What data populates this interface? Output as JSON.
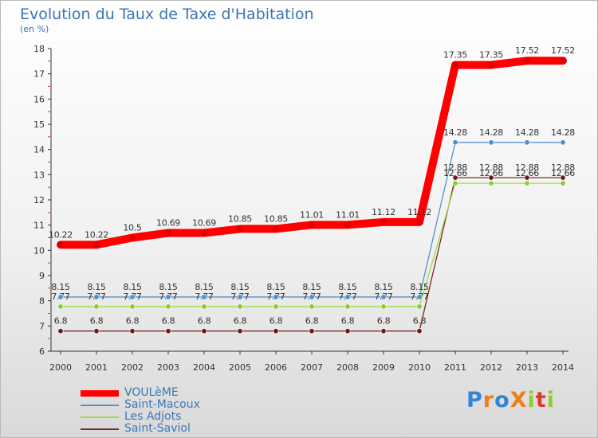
{
  "chart_data": {
    "type": "line",
    "title": "Evolution du Taux de Taxe d'Habitation",
    "subtitle": "(en %)",
    "categories": [
      "2000",
      "2001",
      "2002",
      "2003",
      "2004",
      "2005",
      "2006",
      "2007",
      "2008",
      "2009",
      "2010",
      "2011",
      "2012",
      "2013",
      "2014"
    ],
    "ylim": [
      6,
      18
    ],
    "yticks": [
      "6",
      "7",
      "8",
      "9",
      "10",
      "11",
      "12",
      "13",
      "14",
      "15",
      "16",
      "17",
      "18"
    ],
    "grid": false,
    "legend_position": "bottom-left",
    "series": [
      {
        "name": "VOULèME",
        "color": "#ff0000",
        "values": [
          10.22,
          10.22,
          10.5,
          10.69,
          10.69,
          10.85,
          10.85,
          11.01,
          11.01,
          11.12,
          11.12,
          17.35,
          17.35,
          17.52,
          17.52
        ],
        "labels": [
          "10.22",
          "10.22",
          "10.5",
          "10.69",
          "10.69",
          "10.85",
          "10.85",
          "11.01",
          "11.01",
          "11.12",
          "11.12",
          "17.35",
          "17.35",
          "17.52",
          "17.52"
        ]
      },
      {
        "name": "Saint-Macoux",
        "color": "#5a90c8",
        "marker_color": "#4a8fd0",
        "values": [
          8.15,
          8.15,
          8.15,
          8.15,
          8.15,
          8.15,
          8.15,
          8.15,
          8.15,
          8.15,
          8.15,
          14.28,
          14.28,
          14.28,
          14.28
        ],
        "labels": [
          "8.15",
          "8.15",
          "8.15",
          "8.15",
          "8.15",
          "8.15",
          "8.15",
          "8.15",
          "8.15",
          "8.15",
          "8.15",
          "14.28",
          "14.28",
          "14.28",
          "14.28"
        ]
      },
      {
        "name": "Les Adjots",
        "color": "#99dd44",
        "marker_color": "#88cc33",
        "values": [
          7.77,
          7.77,
          7.77,
          7.77,
          7.77,
          7.77,
          7.77,
          7.77,
          7.77,
          7.77,
          7.77,
          12.66,
          12.66,
          12.66,
          12.66
        ],
        "labels": [
          "7.77",
          "7.77",
          "7.77",
          "7.77",
          "7.77",
          "7.77",
          "7.77",
          "7.77",
          "7.77",
          "7.77",
          "7.77",
          "12.66",
          "12.66",
          "12.66",
          "12.66"
        ]
      },
      {
        "name": "Saint-Saviol",
        "color": "#7a2a2a",
        "marker_color": "#6a1a1a",
        "values": [
          6.8,
          6.8,
          6.8,
          6.8,
          6.8,
          6.8,
          6.8,
          6.8,
          6.8,
          6.8,
          6.8,
          12.88,
          12.88,
          12.88,
          12.88
        ],
        "labels": [
          "6.8",
          "6.8",
          "6.8",
          "6.8",
          "6.8",
          "6.8",
          "6.8",
          "6.8",
          "6.8",
          "6.8",
          "6.8",
          "12.88",
          "12.88",
          "12.88",
          "12.88"
        ]
      }
    ]
  },
  "logo": {
    "text": "ProXiti",
    "letters": [
      {
        "ch": "P",
        "color": "#2f86d6"
      },
      {
        "ch": "r",
        "color": "#f07d12"
      },
      {
        "ch": "o",
        "color": "#2f86d6"
      },
      {
        "ch": "X",
        "color": "#f07d12"
      },
      {
        "ch": "i",
        "color": "#8fcc2b"
      },
      {
        "ch": "t",
        "color": "#e0392b"
      },
      {
        "ch": "i",
        "color": "#8fcc2b"
      }
    ]
  }
}
